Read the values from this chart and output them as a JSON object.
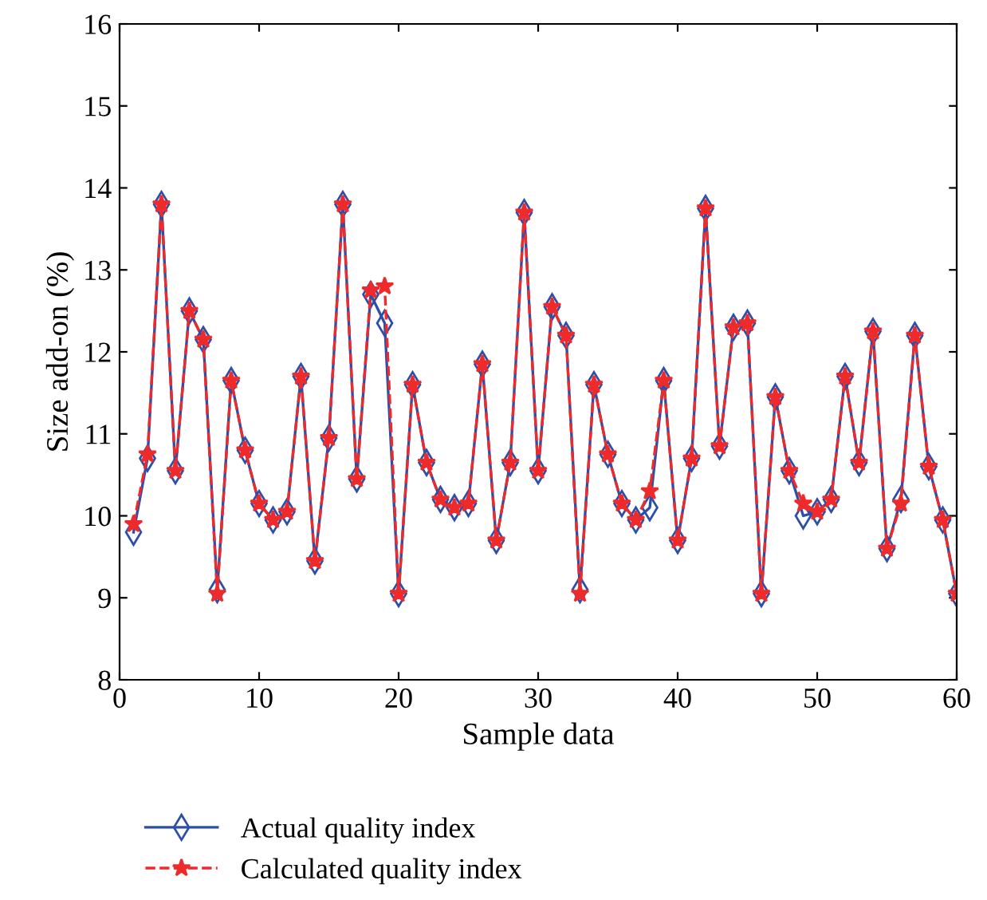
{
  "chart_data": {
    "type": "line",
    "xlabel": "Sample data",
    "ylabel": "Size add-on (%)",
    "x": [
      1,
      2,
      3,
      4,
      5,
      6,
      7,
      8,
      9,
      10,
      11,
      12,
      13,
      14,
      15,
      16,
      17,
      18,
      19,
      20,
      21,
      22,
      23,
      24,
      25,
      26,
      27,
      28,
      29,
      30,
      31,
      32,
      33,
      34,
      35,
      36,
      37,
      38,
      39,
      40,
      41,
      42,
      43,
      44,
      45,
      46,
      47,
      48,
      49,
      50,
      51,
      52,
      53,
      54,
      55,
      56,
      57,
      58,
      59,
      60
    ],
    "series": [
      {
        "name": "Actual quality index",
        "color": "#2e4fa8",
        "marker": "diamond",
        "line_style": "solid",
        "values": [
          9.8,
          10.7,
          13.8,
          10.55,
          12.5,
          12.15,
          9.1,
          11.65,
          10.8,
          10.15,
          9.95,
          10.05,
          11.7,
          9.45,
          10.95,
          13.8,
          10.45,
          12.7,
          12.35,
          9.05,
          11.6,
          10.65,
          10.2,
          10.1,
          10.15,
          11.85,
          9.7,
          10.65,
          13.7,
          10.55,
          12.55,
          12.2,
          9.1,
          11.6,
          10.75,
          10.15,
          9.95,
          10.1,
          11.65,
          9.7,
          10.7,
          13.75,
          10.85,
          12.3,
          12.35,
          9.05,
          11.45,
          10.55,
          10.0,
          10.05,
          10.2,
          11.7,
          10.65,
          12.25,
          9.6,
          10.2,
          12.2,
          10.6,
          9.95,
          9.05
        ]
      },
      {
        "name": "Calculated quality index",
        "color": "#ee2a2a",
        "marker": "star",
        "line_style": "dashed",
        "values": [
          9.9,
          10.75,
          13.8,
          10.55,
          12.5,
          12.15,
          9.05,
          11.65,
          10.8,
          10.15,
          9.95,
          10.05,
          11.7,
          9.45,
          10.95,
          13.8,
          10.45,
          12.75,
          12.8,
          9.05,
          11.6,
          10.65,
          10.2,
          10.1,
          10.15,
          11.85,
          9.7,
          10.65,
          13.7,
          10.55,
          12.55,
          12.2,
          9.05,
          11.6,
          10.75,
          10.15,
          9.95,
          10.3,
          11.65,
          9.7,
          10.7,
          13.75,
          10.85,
          12.3,
          12.35,
          9.05,
          11.45,
          10.55,
          10.15,
          10.05,
          10.2,
          11.7,
          10.65,
          12.25,
          9.6,
          10.15,
          12.2,
          10.6,
          9.95,
          9.05
        ]
      }
    ],
    "xlim": [
      0,
      60
    ],
    "xticks": [
      0,
      10,
      20,
      30,
      40,
      50,
      60
    ],
    "ylim": [
      8,
      16
    ],
    "yticks": [
      8,
      9,
      10,
      11,
      12,
      13,
      14,
      15,
      16
    ],
    "grid": false,
    "legend": "bottom left"
  }
}
